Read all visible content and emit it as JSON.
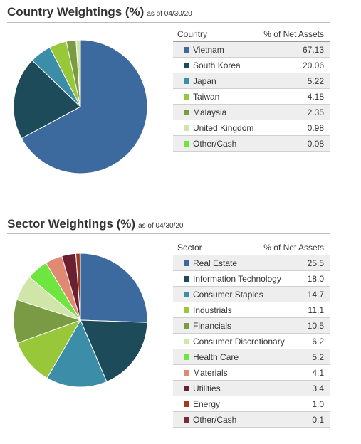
{
  "country": {
    "title": "Country Weightings (%)",
    "as_of": "as of 04/30/20",
    "col1": "Country",
    "col2": "% of Net Assets"
  },
  "sector": {
    "title": "Sector Weightings (%)",
    "as_of": "as of 04/30/20",
    "col1": "Sector",
    "col2": "% of Net Assets"
  },
  "chart_data": [
    {
      "type": "pie",
      "title": "Country Weightings (%)",
      "categories": [
        "Vietnam",
        "South Korea",
        "Japan",
        "Taiwan",
        "Malaysia",
        "United Kingdom",
        "Other/Cash"
      ],
      "values": [
        "67.13",
        "20.06",
        "5.22",
        "4.18",
        "2.35",
        "0.98",
        "0.08"
      ],
      "colors": [
        "#3d6a9e",
        "#1e4b5a",
        "#3c8ea8",
        "#98c73a",
        "#7a9b44",
        "#cfe6a8",
        "#6fe53f"
      ]
    },
    {
      "type": "pie",
      "title": "Sector Weightings (%)",
      "categories": [
        "Real Estate",
        "Information Technology",
        "Consumer Staples",
        "Industrials",
        "Financials",
        "Consumer Discretionary",
        "Health Care",
        "Materials",
        "Utilities",
        "Energy",
        "Other/Cash"
      ],
      "values": [
        "25.5",
        "18.0",
        "14.7",
        "11.1",
        "10.5",
        "6.2",
        "5.2",
        "4.1",
        "3.4",
        "1.0",
        "0.1"
      ],
      "colors": [
        "#3d6a9e",
        "#1e4b5a",
        "#3c8ea8",
        "#98c73a",
        "#7a9b44",
        "#cfe6a8",
        "#6fe53f",
        "#e08a72",
        "#6b1f33",
        "#a23a1e",
        "#7a2a3a"
      ]
    }
  ]
}
